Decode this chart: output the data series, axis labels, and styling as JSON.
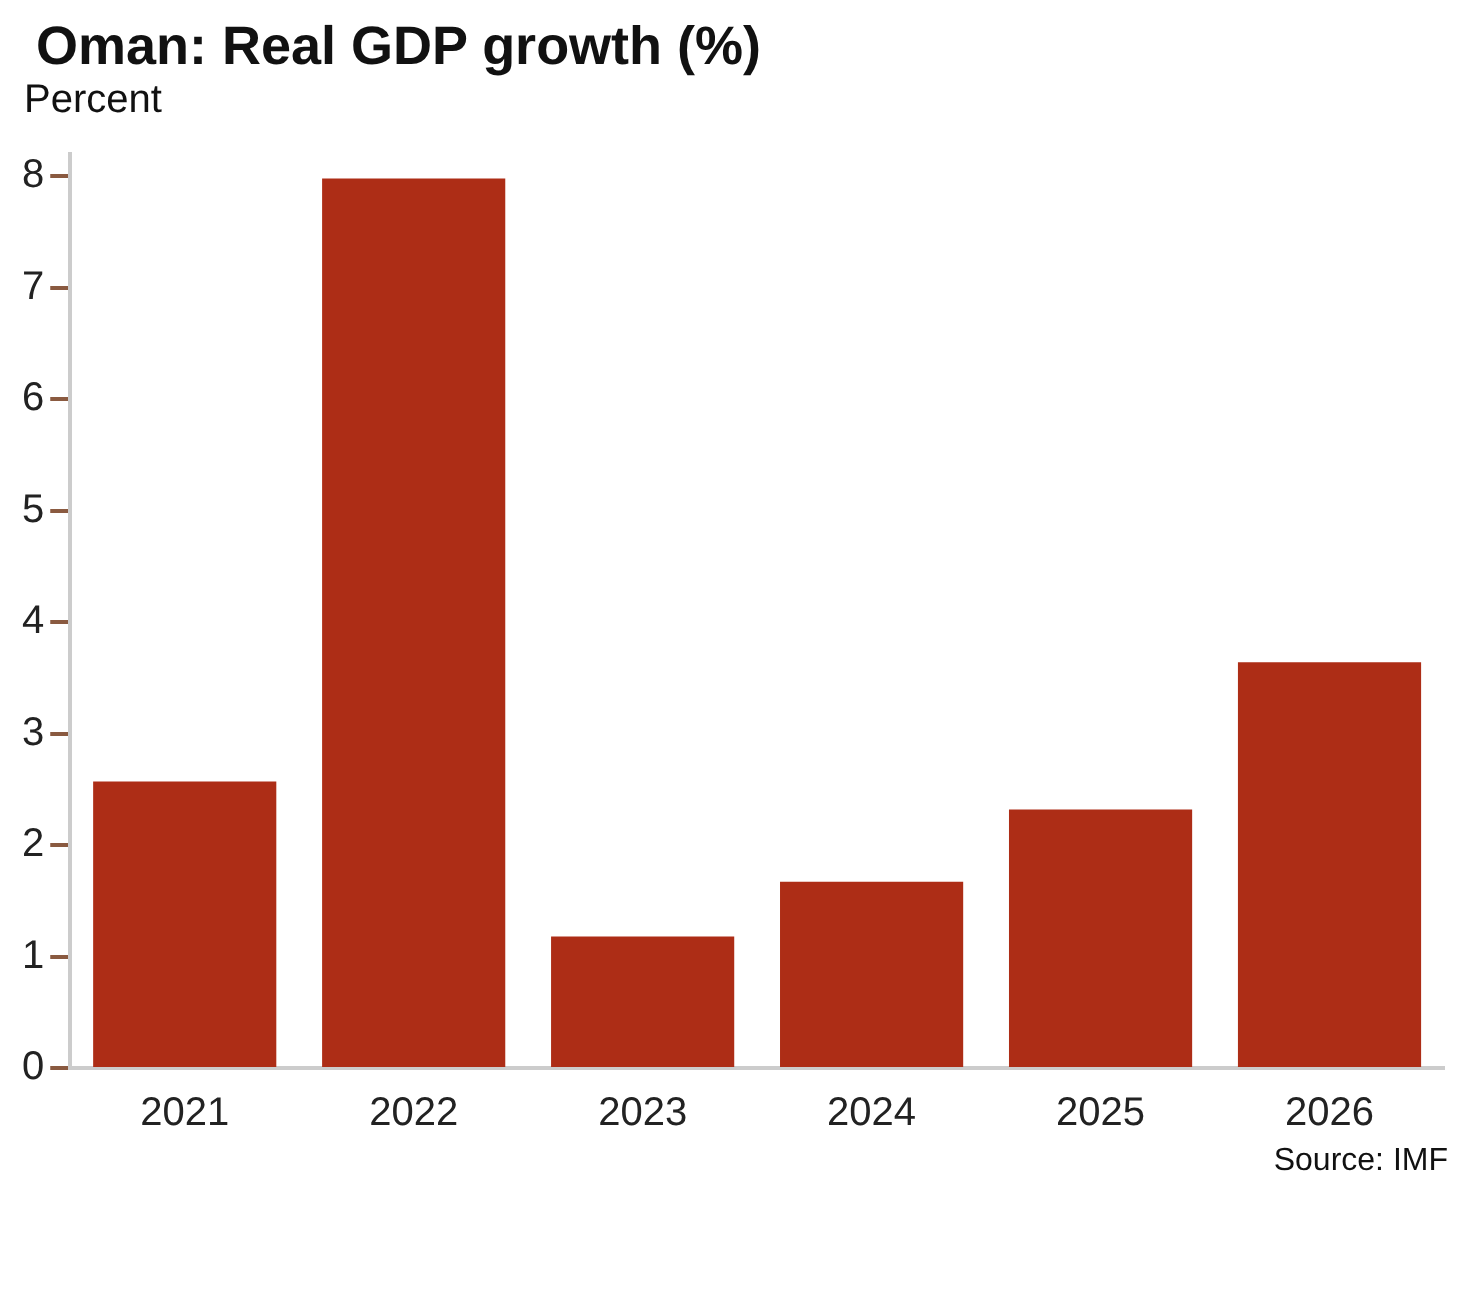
{
  "chart_data": {
    "type": "bar",
    "title": "Oman: Real GDP growth (%)",
    "ylabel": "Percent",
    "annotations": [
      "Source: IMF"
    ],
    "categories": [
      "2021",
      "2022",
      "2023",
      "2024",
      "2025",
      "2026"
    ],
    "values": [
      2.57,
      7.98,
      1.18,
      1.67,
      2.32,
      3.64
    ],
    "color": "#ad2d16",
    "ylim": [
      0,
      8.2
    ],
    "yticks": [
      0,
      1,
      2,
      3,
      4,
      5,
      6,
      7,
      8
    ],
    "grid": false,
    "legend": false
  }
}
